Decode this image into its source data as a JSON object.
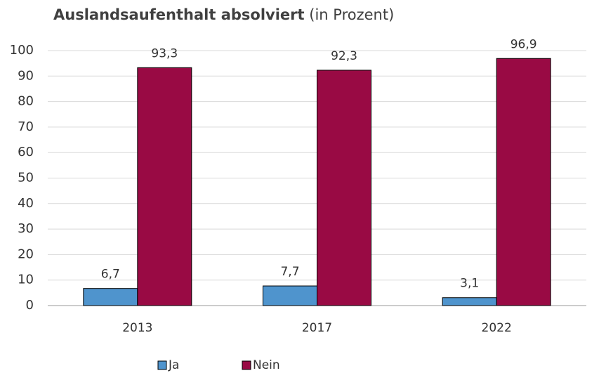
{
  "chart_data": {
    "type": "bar",
    "title": "Auslandsaufenthalt absolviert",
    "subtitle": "(in Prozent)",
    "categories": [
      "2013",
      "2017",
      "2022"
    ],
    "series": [
      {
        "name": "Ja",
        "color": "#4f94cd",
        "values": [
          6.7,
          7.7,
          3.1
        ],
        "value_labels": [
          "6,7",
          "7,7",
          "3,1"
        ]
      },
      {
        "name": "Nein",
        "color": "#990a44",
        "values": [
          93.3,
          92.3,
          96.9
        ],
        "value_labels": [
          "93,3",
          "92,3",
          "96,9"
        ]
      }
    ],
    "ylim": [
      0,
      100
    ],
    "yticks": [
      0,
      10,
      20,
      30,
      40,
      50,
      60,
      70,
      80,
      90,
      100
    ],
    "grid": true,
    "legend": "bottom"
  }
}
